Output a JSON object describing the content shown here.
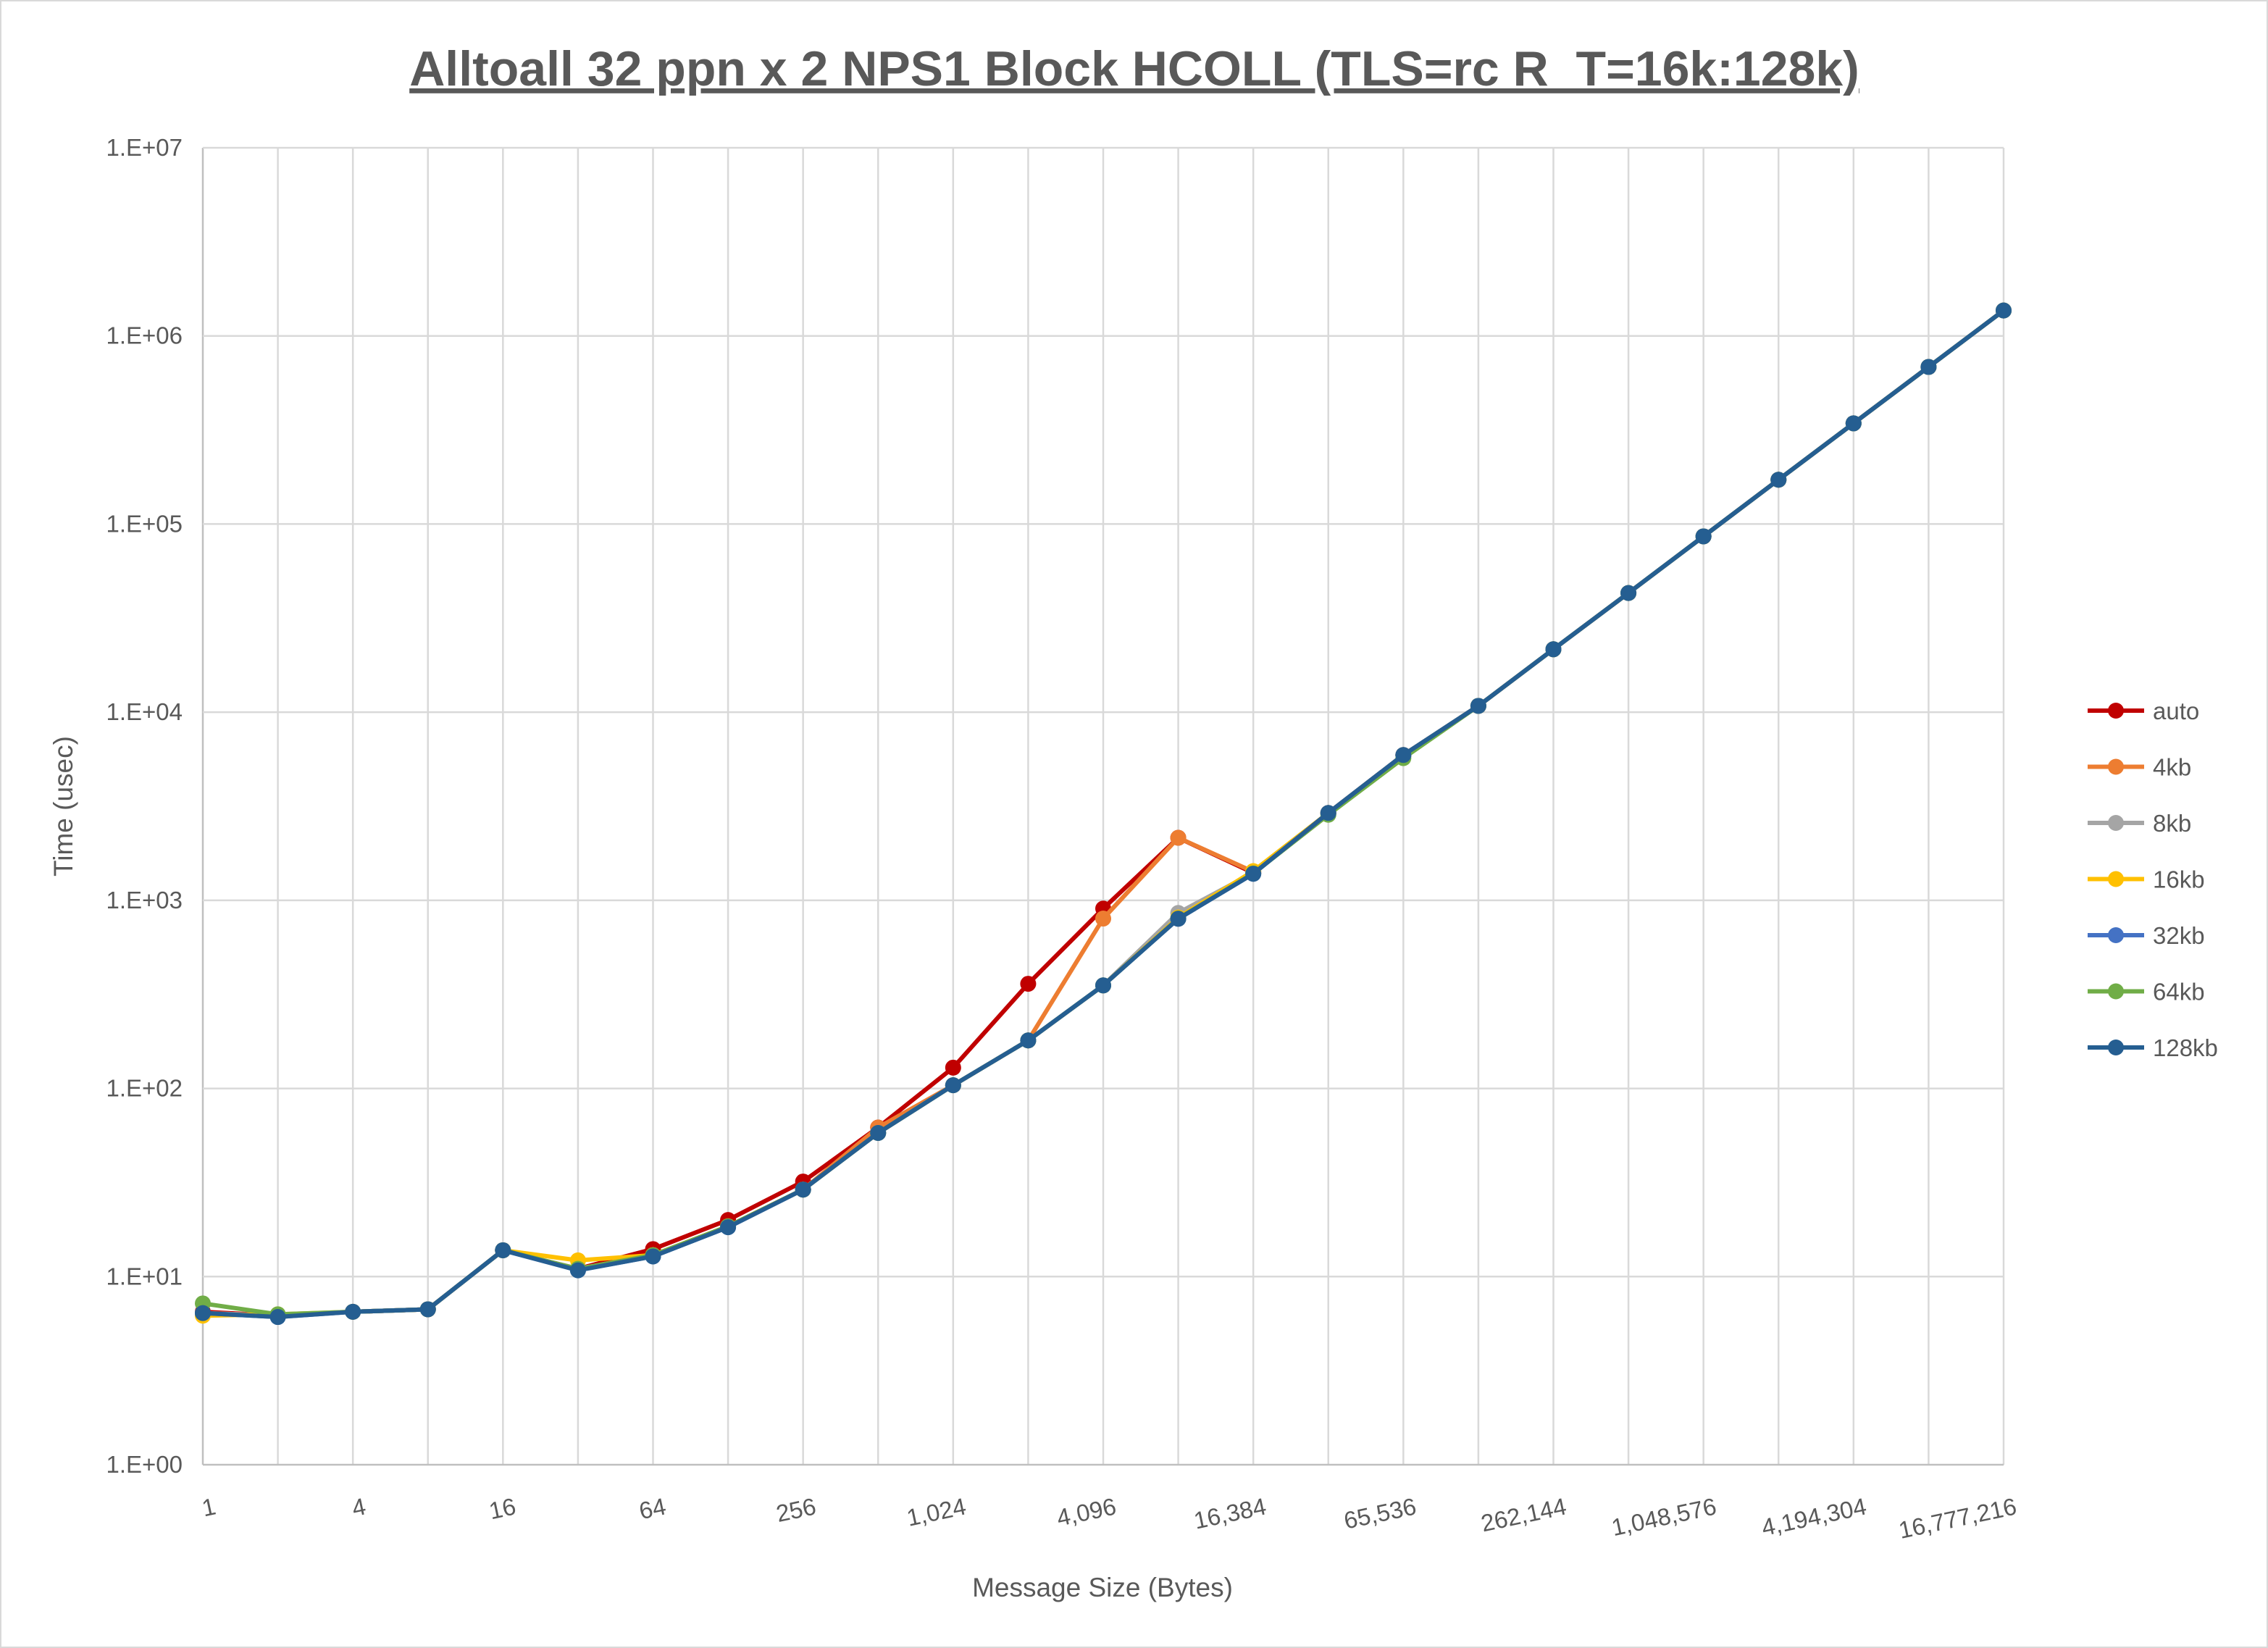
{
  "chart_data": {
    "type": "line",
    "title": "Alltoall 32 ppn x 2 NPS1 Block HCOLL (TLS=rc R_T=16k:128k)",
    "xlabel": "Message Size (Bytes)",
    "ylabel": "Time (usec)",
    "x_scale": "log2",
    "y_scale": "log10",
    "ylim": [
      1,
      10000000
    ],
    "xlim": [
      1,
      16777216
    ],
    "grid": true,
    "legend_position": "right",
    "x": [
      1,
      2,
      4,
      8,
      16,
      32,
      64,
      128,
      256,
      512,
      1024,
      2048,
      4096,
      8192,
      16384,
      32768,
      65536,
      131072,
      262144,
      524288,
      1048576,
      2097152,
      4194304,
      8388608,
      16777216
    ],
    "x_tick_labels": [
      "1",
      "4",
      "16",
      "64",
      "256",
      "1,024",
      "4,096",
      "16,384",
      "65,536",
      "262,144",
      "1,048,576",
      "4,194,304",
      "16,777,216"
    ],
    "y_tick_labels": [
      "1.E+00",
      "1.E+01",
      "1.E+02",
      "1.E+03",
      "1.E+04",
      "1.E+05",
      "1.E+06",
      "1.E+07"
    ],
    "series": [
      {
        "name": "auto",
        "color": "#C00000",
        "values": [
          6.5,
          6.2,
          6.5,
          6.7,
          13.8,
          11,
          14,
          20,
          32,
          62,
          129,
          360,
          904,
          2150,
          1400,
          2913,
          5920,
          10800,
          21600,
          43000,
          86000,
          172000,
          343000,
          684000,
          1365000
        ]
      },
      {
        "name": "4kb",
        "color": "#ED7D31",
        "values": [
          6.4,
          6.2,
          6.5,
          6.7,
          13.8,
          11,
          13,
          18.5,
          29,
          62,
          104,
          180,
          800,
          2150,
          1420,
          2913,
          5920,
          10800,
          21600,
          43000,
          86000,
          172000,
          343000,
          684000,
          1365000
        ]
      },
      {
        "name": "8kb",
        "color": "#A5A5A5",
        "values": [
          6.4,
          6.2,
          6.5,
          6.7,
          13.8,
          11,
          13,
          18.5,
          29,
          58,
          104,
          180,
          353,
          857,
          1400,
          2913,
          5920,
          10800,
          21600,
          43000,
          86000,
          172000,
          343000,
          684000,
          1365000
        ]
      },
      {
        "name": "16kb",
        "color": "#FFC000",
        "values": [
          6.2,
          6.3,
          6.5,
          6.7,
          13.8,
          12.2,
          13,
          18.5,
          29,
          58,
          104,
          180,
          353,
          810,
          1430,
          2913,
          5920,
          10800,
          21600,
          43000,
          86000,
          172000,
          343000,
          684000,
          1365000
        ]
      },
      {
        "name": "32kb",
        "color": "#4472C4",
        "values": [
          6.4,
          6.1,
          6.5,
          6.7,
          13.8,
          10.8,
          12.8,
          18.3,
          29,
          58,
          104,
          180,
          353,
          798,
          1384,
          2913,
          5920,
          10800,
          21600,
          43000,
          86000,
          172000,
          343000,
          684000,
          1365000
        ]
      },
      {
        "name": "64kb",
        "color": "#70AD47",
        "values": [
          7.2,
          6.3,
          6.5,
          6.7,
          13.8,
          11,
          13,
          18.5,
          29,
          58,
          104,
          180,
          353,
          800,
          1390,
          2850,
          5700,
          10800,
          21600,
          43000,
          86000,
          172000,
          343000,
          684000,
          1365000
        ]
      },
      {
        "name": "128kb",
        "color": "#255E91",
        "values": [
          6.4,
          6.1,
          6.5,
          6.7,
          13.8,
          10.8,
          12.8,
          18.3,
          29,
          58,
          104,
          180,
          353,
          798,
          1384,
          2913,
          5920,
          10800,
          21600,
          43000,
          86000,
          172000,
          343000,
          684000,
          1365000
        ]
      }
    ]
  }
}
